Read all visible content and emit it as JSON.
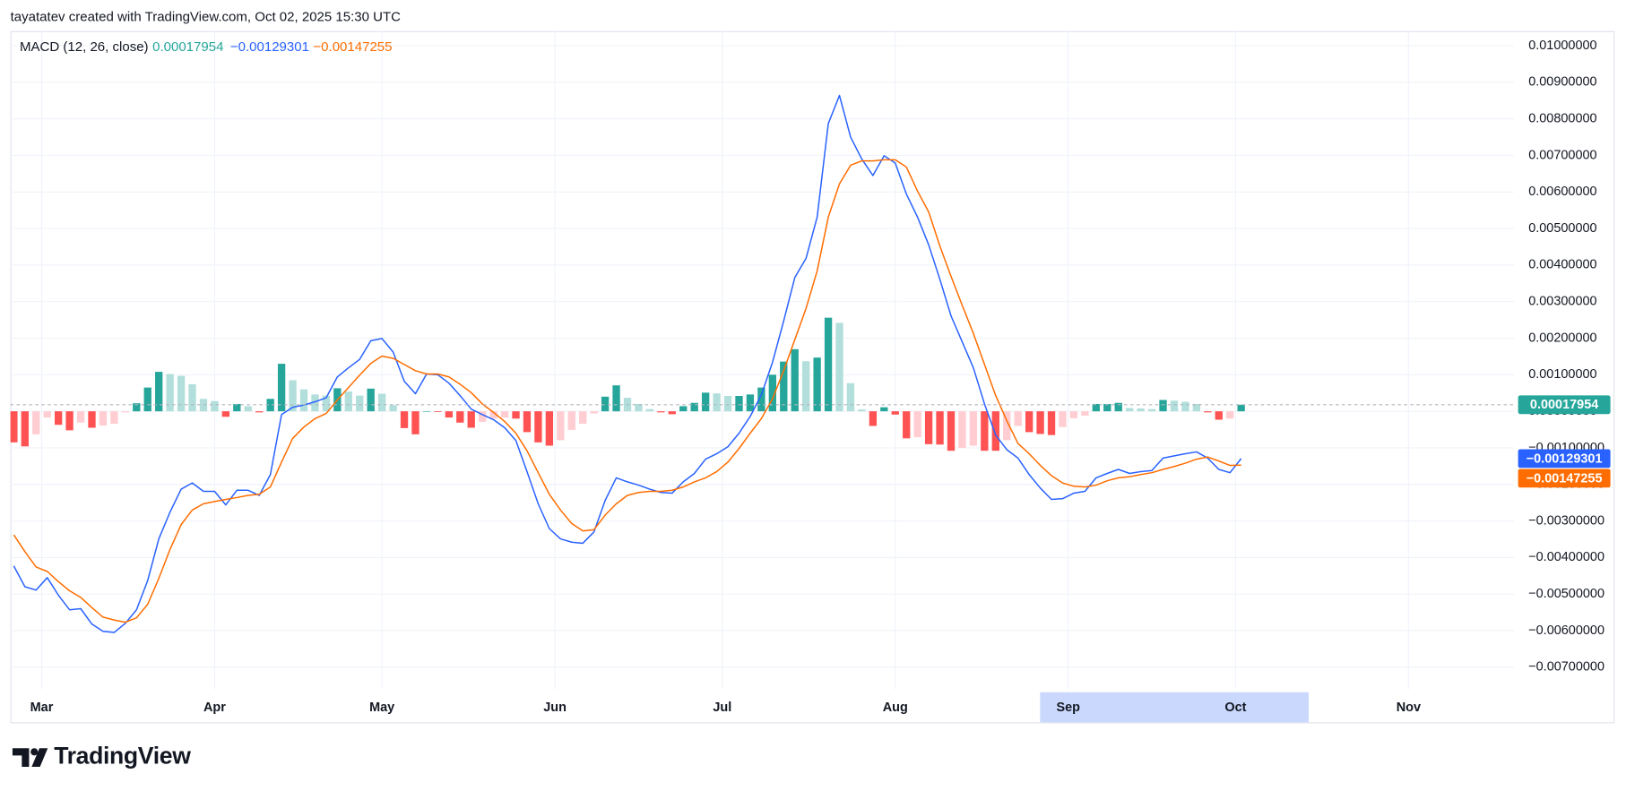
{
  "header_text": "tayatatev created with TradingView.com, Oct 02, 2025 15:30 UTC",
  "brand": "TradingView",
  "chart_data": {
    "type": "line",
    "title": "MACD (12, 26, close)",
    "grid": true,
    "xlim": [
      54.4,
      323.9
    ],
    "ylim": [
      -0.0076,
      0.0104
    ],
    "xticks": [
      {
        "value": 60,
        "label": "Mar"
      },
      {
        "value": 91,
        "label": "Apr"
      },
      {
        "value": 121,
        "label": "May"
      },
      {
        "value": 152,
        "label": "Jun"
      },
      {
        "value": 182,
        "label": "Jul"
      },
      {
        "value": 213,
        "label": "Aug"
      },
      {
        "value": 244,
        "label": "Sep"
      },
      {
        "value": 274,
        "label": "Oct"
      },
      {
        "value": 305,
        "label": "Nov"
      }
    ],
    "yticks": [
      {
        "value": 0.01,
        "label": "0.01000000"
      },
      {
        "value": 0.009,
        "label": "0.00900000"
      },
      {
        "value": 0.008,
        "label": "0.00800000"
      },
      {
        "value": 0.007,
        "label": "0.00700000"
      },
      {
        "value": 0.006,
        "label": "0.00600000"
      },
      {
        "value": 0.005,
        "label": "0.00500000"
      },
      {
        "value": 0.004,
        "label": "0.00400000"
      },
      {
        "value": 0.003,
        "label": "0.00300000"
      },
      {
        "value": 0.002,
        "label": "0.00200000"
      },
      {
        "value": 0.001,
        "label": "0.00100000"
      },
      {
        "value": 0,
        "label": "0.00000000"
      },
      {
        "value": -0.001,
        "label": "−0.00100000"
      },
      {
        "value": -0.002,
        "label": "−0.00200000"
      },
      {
        "value": -0.003,
        "label": "−0.00300000"
      },
      {
        "value": -0.004,
        "label": "−0.00400000"
      },
      {
        "value": -0.005,
        "label": "−0.00500000"
      },
      {
        "value": -0.006,
        "label": "−0.00600000"
      },
      {
        "value": -0.007,
        "label": "−0.00700000"
      }
    ],
    "x": [
      55,
      57,
      59,
      61,
      63,
      65,
      67,
      69,
      71,
      73,
      75,
      77,
      79,
      81,
      83,
      85,
      87,
      89,
      91,
      93,
      95,
      97,
      99,
      101,
      103,
      105,
      107,
      109,
      111,
      113,
      115,
      117,
      119,
      121,
      123,
      125,
      127,
      129,
      131,
      133,
      135,
      137,
      139,
      141,
      143,
      145,
      147,
      149,
      151,
      153,
      155,
      157,
      159,
      161,
      163,
      165,
      167,
      169,
      171,
      173,
      175,
      177,
      179,
      181,
      183,
      185,
      187,
      189,
      191,
      193,
      195,
      197,
      199,
      201,
      203,
      205,
      207,
      209,
      211,
      213,
      215,
      217,
      219,
      221,
      223,
      225,
      227,
      229,
      231,
      233,
      235,
      237,
      239,
      241,
      243,
      245,
      247,
      249,
      251,
      253,
      255,
      257,
      259,
      261,
      263,
      265,
      267,
      269,
      271,
      273,
      275
    ],
    "series": [
      {
        "type": "histogram",
        "color": "#26a69a",
        "colors": {
          "rising_above": "#26a69a",
          "falling_above": "#b2dfdb",
          "rising_below": "#ffcdd2",
          "falling_below": "#ff5252"
        },
        "current": {
          "value": 0.00017954,
          "label": "0.00017954"
        },
        "values": [
          -0.00085,
          -0.00096,
          -0.00063,
          -0.00017,
          -0.00037,
          -0.00052,
          -0.00031,
          -0.00045,
          -0.00039,
          -0.00034,
          -3e-05,
          0.00022,
          0.00065,
          0.00108,
          0.00102,
          0.00097,
          0.00074,
          0.00034,
          0.00028,
          -0.00015,
          0.0002,
          0.00014,
          -3e-05,
          0.00034,
          0.0013,
          0.00085,
          0.0006,
          0.00046,
          0.00043,
          0.00063,
          0.00054,
          0.00043,
          0.00062,
          0.00048,
          0.00017,
          -0.00046,
          -0.00063,
          0,
          -2e-05,
          -0.00017,
          -0.00031,
          -0.00045,
          -0.00029,
          -0.0002,
          -0.00017,
          -0.0002,
          -0.00057,
          -0.00085,
          -0.00094,
          -0.00079,
          -0.00051,
          -0.00034,
          -6e-05,
          0.0004,
          0.00071,
          0.00037,
          0.0002,
          6e-05,
          -3e-05,
          -8e-05,
          0.00014,
          0.00023,
          0.00051,
          0.00049,
          0.00042,
          0.00042,
          0.00046,
          0.00065,
          0.001,
          0.00136,
          0.0017,
          0.00137,
          0.00147,
          0.00256,
          0.00242,
          0.00077,
          5e-05,
          -0.0004,
          0.00011,
          -9e-05,
          -0.00074,
          -0.00071,
          -0.0009,
          -0.00091,
          -0.00108,
          -0.001,
          -0.00094,
          -0.00108,
          -0.00108,
          -0.00079,
          -0.0004,
          -0.00057,
          -0.00062,
          -0.00065,
          -0.00043,
          -0.00019,
          -0.00012,
          0.0002,
          0.0002,
          0.00023,
          9e-05,
          8e-05,
          6e-05,
          0.00031,
          0.00029,
          0.00026,
          0.0002,
          -3e-05,
          -0.00023,
          -0.0002,
          0.00017954
        ]
      },
      {
        "type": "line",
        "color": "#2962ff",
        "current": {
          "value": -0.00129301,
          "label": "−0.00129301"
        },
        "values": [
          -0.00423,
          -0.0048,
          -0.00489,
          -0.00455,
          -0.00503,
          -0.00543,
          -0.0054,
          -0.00582,
          -0.00602,
          -0.00605,
          -0.0058,
          -0.00543,
          -0.00463,
          -0.00349,
          -0.00276,
          -0.00213,
          -0.00196,
          -0.00219,
          -0.00219,
          -0.00256,
          -0.00216,
          -0.00216,
          -0.0023,
          -0.00173,
          -9e-05,
          0.00011,
          0.00017,
          0.00026,
          0.00037,
          0.00094,
          0.00119,
          0.00142,
          0.00193,
          0.00199,
          0.00162,
          0.00082,
          0.00048,
          0.00102,
          0.001,
          0.00077,
          0.00043,
          6e-05,
          -9e-05,
          -0.00023,
          -0.00045,
          -0.0008,
          -0.00165,
          -0.00253,
          -0.00321,
          -0.00349,
          -0.00358,
          -0.00361,
          -0.0033,
          -0.00244,
          -0.00182,
          -0.00193,
          -0.00202,
          -0.00213,
          -0.00222,
          -0.00224,
          -0.00193,
          -0.0017,
          -0.00131,
          -0.00116,
          -0.00097,
          -0.0006,
          -0.00014,
          0.00045,
          0.00134,
          0.00247,
          0.00366,
          0.00418,
          0.00531,
          0.00787,
          0.00864,
          0.0075,
          0.0069,
          0.00645,
          0.00699,
          0.00679,
          0.00594,
          0.00531,
          0.00455,
          0.00361,
          0.00261,
          0.0019,
          0.00119,
          0.0002,
          -0.00065,
          -0.00105,
          -0.00128,
          -0.00173,
          -0.0021,
          -0.00241,
          -0.00239,
          -0.00224,
          -0.00219,
          -0.00182,
          -0.0017,
          -0.00159,
          -0.0017,
          -0.00165,
          -0.00162,
          -0.00128,
          -0.00122,
          -0.00116,
          -0.00111,
          -0.00128,
          -0.00159,
          -0.00168,
          -0.00129301
        ]
      },
      {
        "type": "line",
        "color": "#ff6d00",
        "current": {
          "value": -0.00147255,
          "label": "−0.00147255"
        },
        "values": [
          -0.00338,
          -0.00384,
          -0.00426,
          -0.00438,
          -0.00466,
          -0.00491,
          -0.00509,
          -0.00537,
          -0.00563,
          -0.00571,
          -0.00577,
          -0.00565,
          -0.00528,
          -0.00457,
          -0.00378,
          -0.0031,
          -0.0027,
          -0.00253,
          -0.00247,
          -0.00241,
          -0.00236,
          -0.0023,
          -0.00227,
          -0.00207,
          -0.00139,
          -0.00074,
          -0.00043,
          -0.0002,
          -6e-05,
          0.00031,
          0.00065,
          0.00099,
          0.00131,
          0.00151,
          0.00145,
          0.00128,
          0.00111,
          0.00102,
          0.00102,
          0.00094,
          0.00074,
          0.00051,
          0.0002,
          -3e-05,
          -0.00028,
          -0.0006,
          -0.00108,
          -0.00168,
          -0.00227,
          -0.0027,
          -0.00307,
          -0.00327,
          -0.00324,
          -0.00284,
          -0.00253,
          -0.0023,
          -0.00222,
          -0.00219,
          -0.00219,
          -0.00216,
          -0.00207,
          -0.00193,
          -0.00182,
          -0.00165,
          -0.00139,
          -0.00102,
          -0.0006,
          -0.0002,
          0.00034,
          0.00111,
          0.00196,
          0.00281,
          0.00384,
          0.00531,
          0.00622,
          0.00673,
          0.00685,
          0.00685,
          0.00688,
          0.00688,
          0.00668,
          0.00602,
          0.00545,
          0.00452,
          0.00369,
          0.0029,
          0.00213,
          0.00128,
          0.00043,
          -0.00026,
          -0.00088,
          -0.00116,
          -0.00148,
          -0.00176,
          -0.00196,
          -0.00205,
          -0.00207,
          -0.00202,
          -0.0019,
          -0.00182,
          -0.00179,
          -0.00173,
          -0.00168,
          -0.00159,
          -0.00151,
          -0.00142,
          -0.00131,
          -0.00125,
          -0.00136,
          -0.00148,
          -0.00147255
        ]
      }
    ]
  }
}
